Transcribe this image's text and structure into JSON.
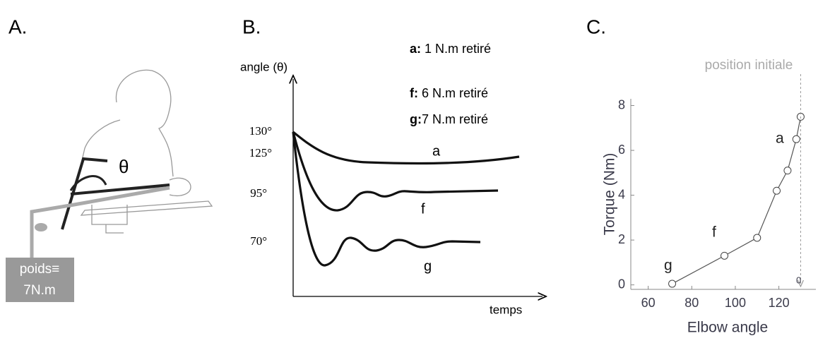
{
  "panel_a": {
    "label": "A.",
    "angle_symbol": "θ",
    "weight_lines": [
      "poids≡",
      "7N.m"
    ]
  },
  "panel_b": {
    "label": "B.",
    "y_axis_label": "angle (θ)",
    "x_axis_label": "temps",
    "ticks": [
      "130°",
      "125°",
      "95°",
      "70°"
    ],
    "legend": [
      {
        "key": "a:",
        "text": " 1 N.m retiré"
      },
      {
        "key": "f:",
        "text": " 6 N.m retiré"
      },
      {
        "key": "g:",
        "text": "7 N.m retiré"
      }
    ],
    "curve_labels": [
      "a",
      "f",
      "g"
    ]
  },
  "chart_data": {
    "type": "scatter",
    "label": "C.",
    "xlabel": "Elbow angle",
    "ylabel": "Torque (Nm)",
    "x": [
      71,
      95,
      110,
      119,
      124,
      128,
      130
    ],
    "values": [
      0.05,
      1.3,
      2.1,
      4.2,
      5.1,
      6.5,
      7.5
    ],
    "xlim": [
      52,
      137
    ],
    "ylim": [
      -0.2,
      8.3
    ],
    "xticks": [
      60,
      80,
      100,
      120
    ],
    "yticks": [
      0,
      2,
      4,
      6,
      8
    ],
    "annotations": [
      "a",
      "f",
      "g",
      "position initiale",
      "0"
    ],
    "initial_position_x": 130
  }
}
